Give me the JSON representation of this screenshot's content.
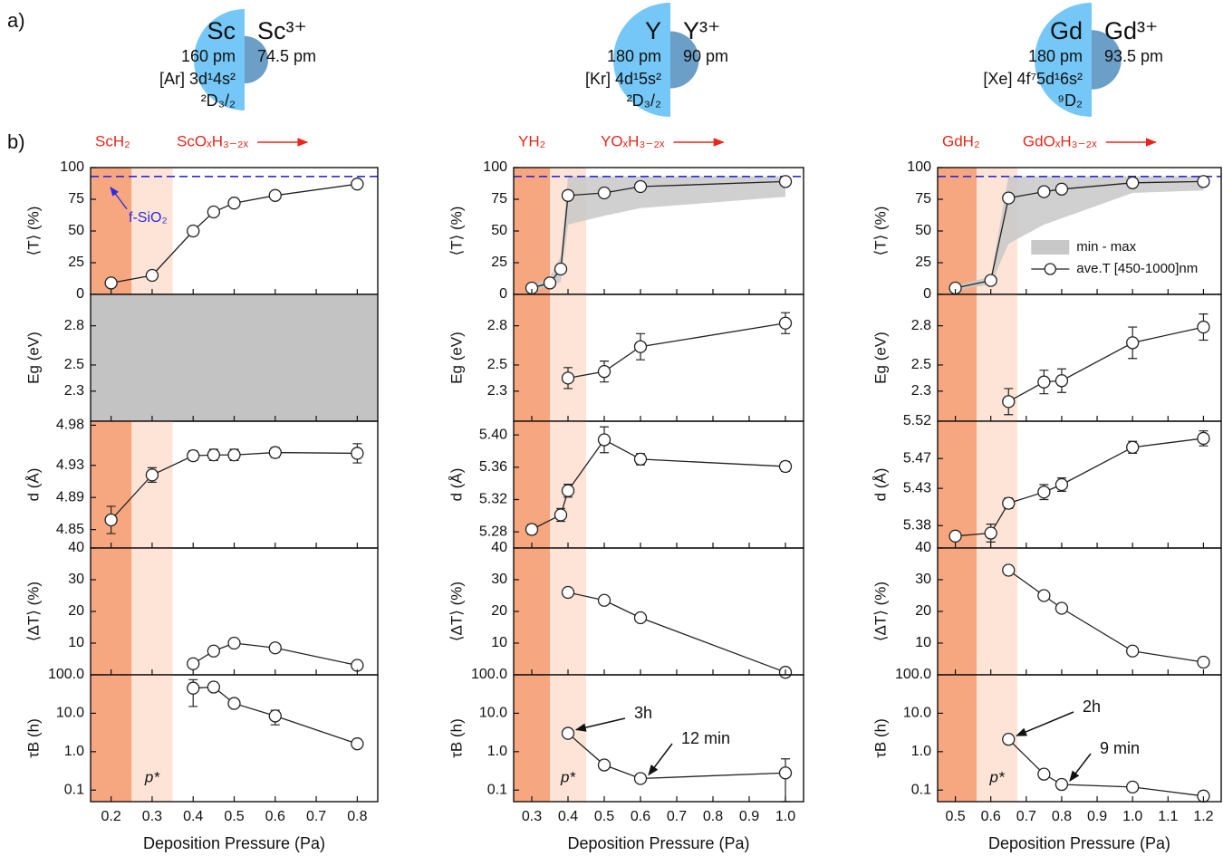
{
  "panel_labels": [
    "a)",
    "b)"
  ],
  "atom_color": "#74c7f6",
  "ion_color": "#6b9fc8",
  "phase_text_color": "#e8261a",
  "marker_fill": "#ffffff",
  "elements": [
    {
      "symbol": "Sc",
      "radius": 160,
      "radius_label": "160 pm",
      "config": "[Ar] 3d¹4s²",
      "term": "²D₃/₂",
      "ion": "Sc³⁺",
      "ion_radius": 74.5,
      "ion_radius_label": "74.5 pm"
    },
    {
      "symbol": "Y",
      "radius": 180,
      "radius_label": "180 pm",
      "config": "[Kr] 4d¹5s²",
      "term": "²D₃/₂",
      "ion": "Y³⁺",
      "ion_radius": 90,
      "ion_radius_label": "90 pm"
    },
    {
      "symbol": "Gd",
      "radius": 180,
      "radius_label": "180 pm",
      "config": "[Xe] 4f⁷5d¹6s²",
      "term": "⁹D₂",
      "ion": "Gd³⁺",
      "ion_radius": 93.5,
      "ion_radius_label": "93.5 pm"
    }
  ],
  "chart_data": [
    {
      "type": "line",
      "xlabel": "Deposition Pressure (Pa)",
      "xlim": [
        0.15,
        0.85
      ],
      "xticks": [
        0.2,
        0.3,
        0.4,
        0.5,
        0.6,
        0.7,
        0.8
      ],
      "phases": [
        {
          "name": "ScH₂",
          "range": [
            0.15,
            0.25
          ],
          "color": "#f7a77f"
        },
        {
          "name": "ScOₓH₃₋₂ₓ",
          "range": [
            0.25,
            0.35
          ],
          "color": "#fde4d6"
        }
      ],
      "phase_note": "p*",
      "panels": [
        {
          "ylabel": "⟨T⟩ (%)",
          "ylim": [
            0,
            100
          ],
          "yticks": [
            0,
            25,
            50,
            75,
            100
          ],
          "reference": {
            "value": 93,
            "label": "f-SiO₂",
            "color": "#2b2bdb"
          },
          "series": [
            {
              "color": "#222222",
              "x": [
                0.2,
                0.3,
                0.4,
                0.45,
                0.5,
                0.6,
                0.8
              ],
              "values": [
                9,
                15,
                50,
                65,
                72,
                78,
                87
              ]
            }
          ]
        },
        {
          "ylabel": "Eg (eV)",
          "ylim": [
            2.07,
            3.04
          ],
          "yticks": [
            2.3,
            2.5,
            2.8
          ],
          "background": "#c3c3c3",
          "series": []
        },
        {
          "ylabel": "d (Å)",
          "ylim": [
            4.827,
            4.985
          ],
          "yticks": [
            4.85,
            4.89,
            4.93,
            4.98
          ],
          "series": [
            {
              "color": "#222222",
              "x": [
                0.2,
                0.3,
                0.4,
                0.45,
                0.5,
                0.6,
                0.8
              ],
              "values": [
                4.862,
                4.918,
                4.942,
                4.943,
                4.943,
                4.946,
                4.945
              ],
              "errors": [
                0.017,
                0.009,
                0.006,
                0.007,
                0.007,
                0.006,
                0.012
              ]
            }
          ]
        },
        {
          "ylabel": "⟨ΔT⟩ (%)",
          "ylim": [
            0,
            40
          ],
          "yticks": [
            10,
            20,
            30,
            40
          ],
          "series": [
            {
              "color": "#222222",
              "x": [
                0.4,
                0.45,
                0.5,
                0.6,
                0.8
              ],
              "values": [
                3.5,
                7.5,
                10,
                8.5,
                3
              ]
            }
          ]
        },
        {
          "ylabel": "τB (h)",
          "log": true,
          "ylim": [
            0.05,
            100
          ],
          "yticks": [
            0.1,
            {
              "value": 1,
              "label": "1.0"
            },
            {
              "value": 10,
              "label": "10.0"
            },
            {
              "value": 100,
              "label": "100.0"
            }
          ],
          "series": [
            {
              "color": "#222222",
              "x": [
                0.4,
                0.45,
                0.5,
                0.6,
                0.8
              ],
              "values": [
                45,
                48,
                18,
                8.5,
                1.6
              ],
              "errors": [
                30,
                5,
                3,
                3.5,
                0.2
              ]
            }
          ]
        }
      ]
    },
    {
      "type": "line",
      "xlabel": "Deposition Pressure (Pa)",
      "xlim": [
        0.25,
        1.05
      ],
      "xticks": [
        0.3,
        0.4,
        0.5,
        0.6,
        0.7,
        0.8,
        0.9,
        {
          "value": 1,
          "label": "1.0"
        }
      ],
      "phases": [
        {
          "name": "YH₂",
          "range": [
            0.25,
            0.35
          ],
          "color": "#f7a77f"
        },
        {
          "name": "YOₓH₃₋₂ₓ",
          "range": [
            0.35,
            0.45
          ],
          "color": "#fde4d6"
        }
      ],
      "phase_note": "p*",
      "panels": [
        {
          "ylabel": "⟨T⟩ (%)",
          "ylim": [
            0,
            100
          ],
          "yticks": [
            0,
            25,
            50,
            75,
            100
          ],
          "reference": {
            "value": 93,
            "color": "#2b2bdb"
          },
          "band": {
            "color": "#c8c8c8",
            "x": [
              0.3,
              0.35,
              0.38,
              0.4,
              0.5,
              0.6,
              1.0
            ],
            "lower": [
              3,
              6,
              10,
              55,
              62,
              68,
              77
            ],
            "upper": [
              8,
              13,
              30,
              93,
              93,
              93,
              93
            ]
          },
          "series": [
            {
              "color": "#222222",
              "x": [
                0.3,
                0.35,
                0.38,
                0.4,
                0.5,
                0.6,
                1.0
              ],
              "values": [
                5,
                9,
                20,
                78,
                80,
                85,
                89
              ]
            }
          ]
        },
        {
          "ylabel": "Eg (eV)",
          "ylim": [
            2.07,
            3.04
          ],
          "yticks": [
            2.3,
            2.5,
            2.8
          ],
          "series": [
            {
              "color": "#222222",
              "x": [
                0.4,
                0.5,
                0.6,
                1.0
              ],
              "values": [
                2.4,
                2.45,
                2.64,
                2.82
              ],
              "errors": [
                0.08,
                0.08,
                0.1,
                0.08
              ]
            }
          ]
        },
        {
          "ylabel": "d (Å)",
          "ylim": [
            5.26,
            5.417
          ],
          "yticks": [
            5.28,
            5.32,
            5.36,
            {
              "value": 5.4,
              "label": "5.40"
            }
          ],
          "series": [
            {
              "color": "#222222",
              "x": [
                0.3,
                0.38,
                0.4,
                0.5,
                0.6,
                1.0
              ],
              "values": [
                5.283,
                5.301,
                5.331,
                5.394,
                5.37,
                5.361
              ],
              "errors": [
                0.006,
                0.008,
                0.008,
                0.016,
                0.007,
                0.006
              ]
            }
          ]
        },
        {
          "ylabel": "⟨ΔT⟩ (%)",
          "ylim": [
            0,
            40
          ],
          "yticks": [
            10,
            20,
            30,
            40
          ],
          "series": [
            {
              "color": "#222222",
              "x": [
                0.4,
                0.5,
                0.6,
                1.0
              ],
              "values": [
                26,
                23.5,
                18,
                0.8
              ]
            }
          ]
        },
        {
          "ylabel": "τB (h)",
          "log": true,
          "ylim": [
            0.05,
            100
          ],
          "yticks": [
            0.1,
            {
              "value": 1,
              "label": "1.0"
            },
            {
              "value": 10,
              "label": "10.0"
            },
            {
              "value": 100,
              "label": "100.0"
            }
          ],
          "annotations": [
            "3h",
            "12 min"
          ],
          "series": [
            {
              "color": "#222222",
              "x": [
                0.4,
                0.5,
                0.6,
                1.0
              ],
              "values": [
                3,
                0.45,
                0.2,
                0.28
              ],
              "errors": [
                0.3,
                0.05,
                0.03,
                0.37
              ]
            }
          ]
        }
      ]
    },
    {
      "type": "line",
      "xlabel": "Deposition Pressure (Pa)",
      "xlim": [
        0.45,
        1.25
      ],
      "xticks": [
        0.5,
        0.6,
        0.7,
        0.8,
        0.9,
        {
          "value": 1,
          "label": "1.0"
        },
        1.1,
        1.2
      ],
      "phases": [
        {
          "name": "GdH₂",
          "range": [
            0.45,
            0.56
          ],
          "color": "#f7a77f"
        },
        {
          "name": "GdOₓH₃₋₂ₓ",
          "range": [
            0.56,
            0.675
          ],
          "color": "#fde4d6"
        }
      ],
      "phase_note": "p*",
      "panels": [
        {
          "ylabel": "⟨T⟩ (%)",
          "ylim": [
            0,
            100
          ],
          "yticks": [
            0,
            25,
            50,
            75,
            100
          ],
          "reference": {
            "value": 93,
            "color": "#2b2bdb"
          },
          "legend": "right",
          "band": {
            "name": "min - max",
            "color": "#c8c8c8",
            "x": [
              0.5,
              0.6,
              0.65,
              0.75,
              0.8,
              1.0,
              1.2
            ],
            "lower": [
              3,
              8,
              40,
              55,
              60,
              80,
              82
            ],
            "upper": [
              7,
              14,
              93,
              93,
              93,
              93,
              93
            ]
          },
          "series": [
            {
              "name": "ave.T [450-1000]nm",
              "color": "#222222",
              "x": [
                0.5,
                0.6,
                0.65,
                0.75,
                0.8,
                1.0,
                1.2
              ],
              "values": [
                5,
                11,
                76,
                81,
                83,
                88,
                89
              ]
            }
          ]
        },
        {
          "ylabel": "Eg (eV)",
          "ylim": [
            2.07,
            3.04
          ],
          "yticks": [
            2.3,
            2.5,
            2.8
          ],
          "series": [
            {
              "color": "#222222",
              "x": [
                0.65,
                0.75,
                0.8,
                1.0,
                1.2
              ],
              "values": [
                2.22,
                2.37,
                2.38,
                2.67,
                2.79
              ],
              "errors": [
                0.1,
                0.09,
                0.09,
                0.12,
                0.1
              ]
            }
          ]
        },
        {
          "ylabel": "d (Å)",
          "ylim": [
            5.35,
            5.52
          ],
          "yticks": [
            5.38,
            5.43,
            5.47,
            5.52
          ],
          "series": [
            {
              "color": "#222222",
              "x": [
                0.5,
                0.6,
                0.65,
                0.75,
                0.8,
                1.0,
                1.2
              ],
              "values": [
                5.366,
                5.37,
                5.41,
                5.425,
                5.435,
                5.485,
                5.497
              ],
              "errors": [
                0.005,
                0.012,
                0.007,
                0.01,
                0.009,
                0.008,
                0.01
              ]
            }
          ]
        },
        {
          "ylabel": "⟨ΔT⟩ (%)",
          "ylim": [
            0,
            40
          ],
          "yticks": [
            10,
            20,
            30,
            40
          ],
          "series": [
            {
              "color": "#222222",
              "x": [
                0.65,
                0.75,
                0.8,
                1.0,
                1.2
              ],
              "values": [
                33,
                25,
                21,
                7.5,
                4
              ]
            }
          ]
        },
        {
          "ylabel": "τB (h)",
          "log": true,
          "ylim": [
            0.05,
            100
          ],
          "yticks": [
            0.1,
            {
              "value": 1,
              "label": "1.0"
            },
            {
              "value": 10,
              "label": "10.0"
            },
            {
              "value": 100,
              "label": "100.0"
            }
          ],
          "annotations": [
            "2h",
            "9 min"
          ],
          "series": [
            {
              "color": "#222222",
              "x": [
                0.65,
                0.75,
                0.8,
                1.0,
                1.2
              ],
              "values": [
                2.1,
                0.26,
                0.14,
                0.12,
                0.07
              ]
            }
          ]
        }
      ]
    }
  ]
}
